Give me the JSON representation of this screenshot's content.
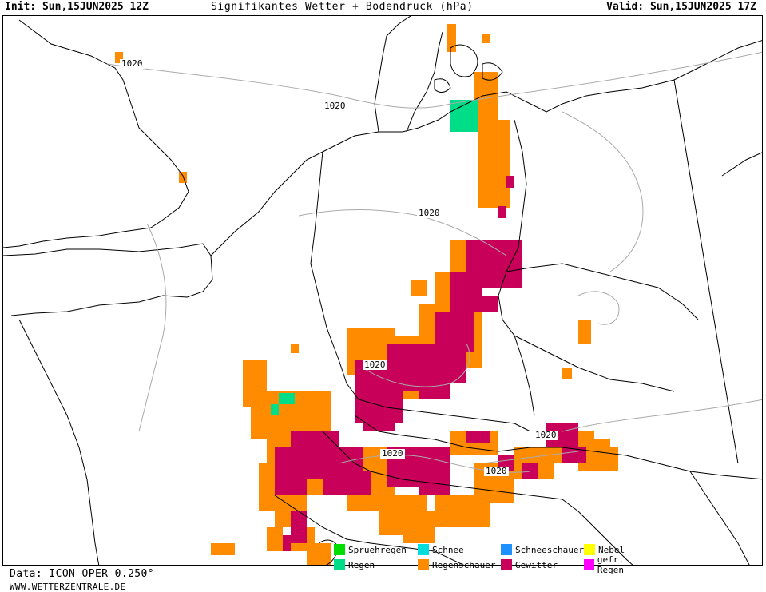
{
  "header": {
    "init": "Init: Sun,15JUN2025 12Z",
    "title": "Signifikantes Wetter + Bodendruck (hPa)",
    "valid": "Valid: Sun,15JUN2025 17Z"
  },
  "isobars": [
    "1020",
    "1020",
    "1020",
    "1020",
    "1020",
    "1020",
    "1020"
  ],
  "legend": [
    {
      "label": "Spruehregen",
      "color": "#00dd00"
    },
    {
      "label": "Schnee",
      "color": "#00dddd"
    },
    {
      "label": "Schneeschauer",
      "color": "#1e90ff"
    },
    {
      "label": "Nebel",
      "color": "#ffff00"
    },
    {
      "label": "Regen",
      "color": "#00dd88"
    },
    {
      "label": "Regenschauer",
      "color": "#ff8c00"
    },
    {
      "label": "Gewitter",
      "color": "#c8005a"
    },
    {
      "label": "gefr. Regen",
      "color": "#ff00ff"
    }
  ],
  "footer": {
    "data_source": "Data: ICON OPER 0.250°",
    "website": "WWW.WETTERZENTRALE.DE"
  }
}
